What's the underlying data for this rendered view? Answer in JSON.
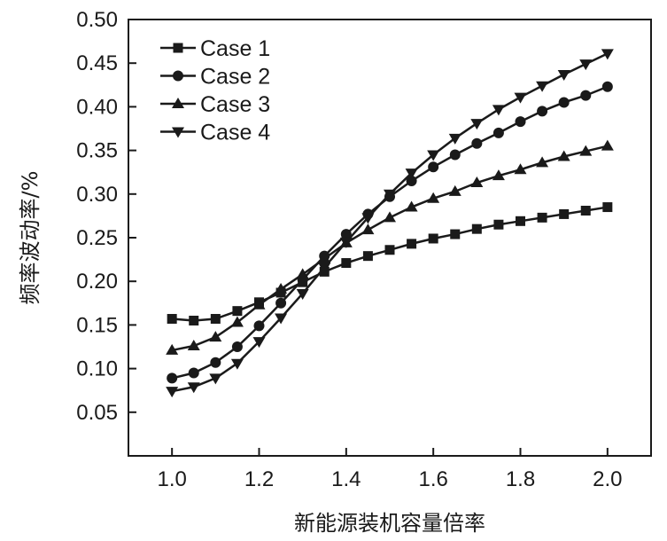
{
  "chart_data": {
    "type": "line",
    "xlabel": "新能源装机容量倍率",
    "ylabel": "频率波动率/%",
    "xlim": [
      0.9,
      2.1
    ],
    "ylim": [
      0.0,
      0.5
    ],
    "xticks": [
      1.0,
      1.2,
      1.4,
      1.6,
      1.8,
      2.0
    ],
    "yticks": [
      0.05,
      0.1,
      0.15,
      0.2,
      0.25,
      0.3,
      0.35,
      0.4,
      0.45,
      0.5
    ],
    "xtick_labels": [
      "1.0",
      "1.2",
      "1.4",
      "1.6",
      "1.8",
      "2.0"
    ],
    "ytick_labels": [
      "0.05",
      "0.10",
      "0.15",
      "0.20",
      "0.25",
      "0.30",
      "0.35",
      "0.40",
      "0.45",
      "0.50"
    ],
    "grid": false,
    "legend_position": "top-left",
    "x": [
      1.0,
      1.05,
      1.1,
      1.15,
      1.2,
      1.25,
      1.3,
      1.35,
      1.4,
      1.45,
      1.5,
      1.55,
      1.6,
      1.65,
      1.7,
      1.75,
      1.8,
      1.85,
      1.9,
      1.95,
      2.0
    ],
    "series": [
      {
        "name": "Case 1",
        "marker": "square",
        "values": [
          0.157,
          0.155,
          0.157,
          0.166,
          0.176,
          0.187,
          0.199,
          0.211,
          0.221,
          0.229,
          0.236,
          0.243,
          0.249,
          0.254,
          0.26,
          0.265,
          0.269,
          0.273,
          0.277,
          0.281,
          0.285
        ]
      },
      {
        "name": "Case 2",
        "marker": "circle",
        "values": [
          0.089,
          0.095,
          0.107,
          0.125,
          0.149,
          0.175,
          0.202,
          0.229,
          0.254,
          0.277,
          0.297,
          0.315,
          0.331,
          0.345,
          0.358,
          0.37,
          0.383,
          0.395,
          0.405,
          0.413,
          0.423
        ]
      },
      {
        "name": "Case 3",
        "marker": "triangle-up",
        "values": [
          0.121,
          0.126,
          0.136,
          0.153,
          0.173,
          0.191,
          0.208,
          0.226,
          0.244,
          0.259,
          0.273,
          0.285,
          0.295,
          0.303,
          0.313,
          0.321,
          0.328,
          0.336,
          0.343,
          0.349,
          0.355
        ]
      },
      {
        "name": "Case 4",
        "marker": "triangle-down",
        "values": [
          0.074,
          0.079,
          0.089,
          0.106,
          0.131,
          0.158,
          0.186,
          0.216,
          0.245,
          0.273,
          0.3,
          0.324,
          0.345,
          0.364,
          0.381,
          0.397,
          0.411,
          0.424,
          0.437,
          0.449,
          0.461
        ]
      }
    ]
  },
  "colors": {
    "line": "#1a1a1a",
    "background": "#ffffff"
  }
}
